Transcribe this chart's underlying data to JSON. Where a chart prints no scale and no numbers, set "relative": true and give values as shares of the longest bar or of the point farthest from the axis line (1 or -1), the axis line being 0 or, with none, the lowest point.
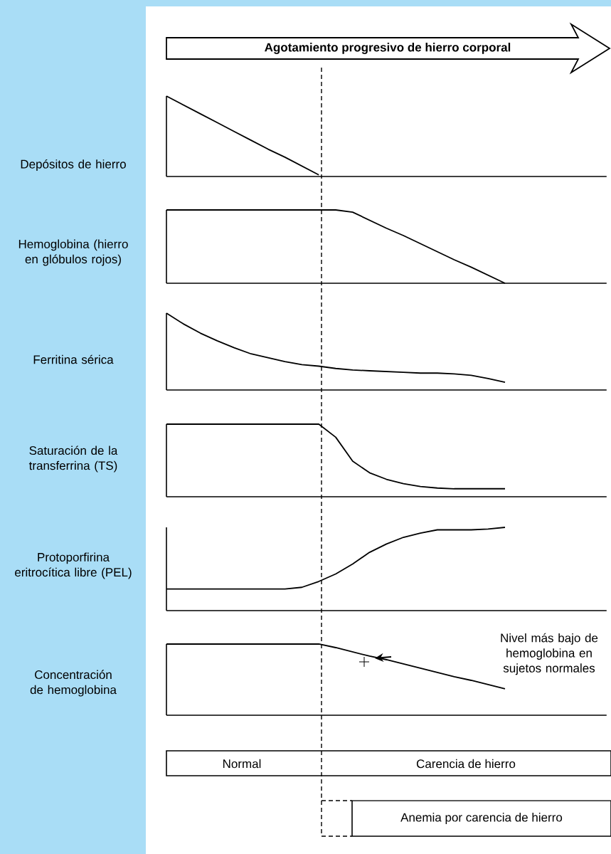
{
  "chart_data": [
    {
      "type": "line",
      "title": "Agotamiento progresivo de hierro corporal",
      "ylabel": "Depósitos de hierro",
      "relative": true,
      "color": "#000000",
      "categories": [
        null,
        null,
        null,
        null,
        null,
        null,
        null,
        null,
        null,
        null,
        null,
        null,
        null,
        null,
        null,
        null,
        null,
        null,
        null,
        null,
        null,
        null,
        null,
        null,
        null,
        null,
        null
      ],
      "values": [
        1,
        0.89,
        0.78,
        0.67,
        0.56,
        0.45,
        0.34,
        0.24,
        0.13,
        0.02,
        null,
        null,
        null,
        null,
        null,
        null,
        null,
        null,
        null,
        null,
        null,
        null,
        null,
        null,
        null,
        null,
        null
      ]
    },
    {
      "type": "line",
      "ylabel": "Hemoglobina (hierro en glóbulos rojos)",
      "relative": true,
      "color": "#000000",
      "categories": [
        null,
        null,
        null,
        null,
        null,
        null,
        null,
        null,
        null,
        null,
        null,
        null,
        null,
        null,
        null,
        null,
        null,
        null,
        null,
        null,
        null,
        null,
        null,
        null,
        null,
        null,
        null
      ],
      "values": [
        1,
        1,
        1,
        1,
        1,
        1,
        1,
        1,
        1,
        1,
        1,
        0.97,
        0.86,
        0.75,
        0.65,
        0.54,
        0.43,
        0.32,
        0.22,
        0.11,
        0,
        null,
        null,
        null,
        null,
        null,
        null
      ]
    },
    {
      "type": "line",
      "ylabel": "Ferritina sérica",
      "relative": true,
      "color": "#000000",
      "categories": [
        null,
        null,
        null,
        null,
        null,
        null,
        null,
        null,
        null,
        null,
        null,
        null,
        null,
        null,
        null,
        null,
        null,
        null,
        null,
        null,
        null,
        null,
        null,
        null,
        null,
        null,
        null
      ],
      "values": [
        1,
        0.86,
        0.74,
        0.64,
        0.55,
        0.47,
        0.42,
        0.37,
        0.33,
        0.31,
        0.28,
        0.26,
        0.25,
        0.24,
        0.23,
        0.22,
        0.22,
        0.21,
        0.19,
        0.15,
        0.1,
        null,
        null,
        null,
        null,
        null,
        null
      ]
    },
    {
      "type": "line",
      "ylabel": "Saturación de la transferrina (TS)",
      "relative": true,
      "color": "#000000",
      "categories": [
        null,
        null,
        null,
        null,
        null,
        null,
        null,
        null,
        null,
        null,
        null,
        null,
        null,
        null,
        null,
        null,
        null,
        null,
        null,
        null,
        null,
        null,
        null,
        null,
        null,
        null,
        null
      ],
      "values": [
        1,
        1,
        1,
        1,
        1,
        1,
        1,
        1,
        1,
        1,
        0.82,
        0.49,
        0.33,
        0.24,
        0.18,
        0.14,
        0.12,
        0.11,
        0.11,
        0.11,
        0.11,
        null,
        null,
        null,
        null,
        null,
        null
      ]
    },
    {
      "type": "line",
      "ylabel": "Protoporfirina eritrocítica libre (PEL)",
      "relative": true,
      "color": "#000000",
      "categories": [
        null,
        null,
        null,
        null,
        null,
        null,
        null,
        null,
        null,
        null,
        null,
        null,
        null,
        null,
        null,
        null,
        null,
        null,
        null,
        null,
        null,
        null,
        null,
        null,
        null,
        null,
        null
      ],
      "values": [
        0.26,
        0.26,
        0.26,
        0.26,
        0.26,
        0.26,
        0.26,
        0.26,
        0.28,
        0.35,
        0.44,
        0.56,
        0.7,
        0.8,
        0.88,
        0.93,
        0.97,
        0.97,
        0.97,
        0.98,
        1,
        null,
        null,
        null,
        null,
        null,
        null
      ]
    },
    {
      "type": "line",
      "ylabel": "Concentración de hemoglobina",
      "relative": true,
      "color": "#000000",
      "categories": [
        null,
        null,
        null,
        null,
        null,
        null,
        null,
        null,
        null,
        null,
        null,
        null,
        null,
        null,
        null,
        null,
        null,
        null,
        null,
        null,
        null,
        null,
        null,
        null,
        null,
        null,
        null
      ],
      "values": [
        1,
        1,
        1,
        1,
        1,
        1,
        1,
        1,
        1,
        1,
        0.95,
        0.89,
        0.83,
        0.78,
        0.72,
        0.66,
        0.6,
        0.54,
        0.49,
        0.43,
        0.37,
        null,
        null,
        null,
        null,
        null,
        null
      ],
      "annotations": [
        "Nivel más bajo de hemoglobina en sujetos normales"
      ]
    },
    {
      "type": "other",
      "annotations": [
        "Normal",
        "Carencia de hierro",
        "Anemia por carencia de hierro"
      ]
    }
  ]
}
